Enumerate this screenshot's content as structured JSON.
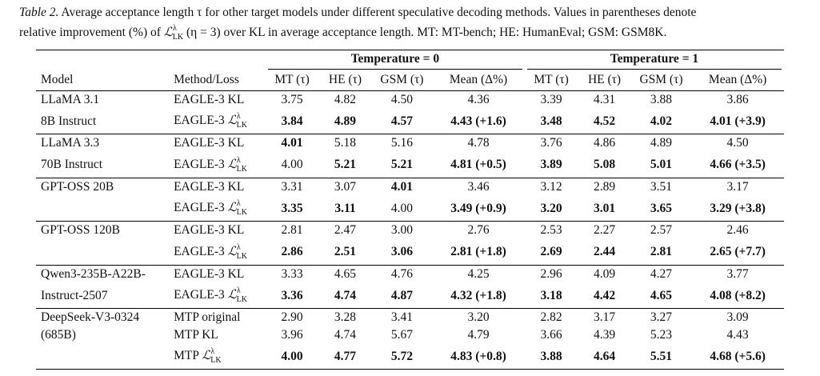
{
  "caption": {
    "label": "Table 2.",
    "text_line1": "Average acceptance length τ for other target models under different speculative decoding methods. Values in parentheses denote",
    "text_line2_pre": "relative improvement (%) of ",
    "loss_symbol": "ℒ",
    "loss_sup": "λ",
    "loss_sub": "LK",
    "text_line2_post": " (η = 3) over KL in average acceptance length. MT: MT-bench; HE: HumanEval; GSM: GSM8K."
  },
  "header": {
    "group1": "Temperature = 0",
    "group2": "Temperature = 1",
    "col_model": "Model",
    "col_method": "Method/Loss",
    "cols": [
      "MT (τ)",
      "HE (τ)",
      "GSM (τ)",
      "Mean (Δ%)",
      "MT (τ)",
      "HE (τ)",
      "GSM (τ)",
      "Mean (Δ%)"
    ]
  },
  "rows": [
    {
      "model": "LLaMA 3.1",
      "method": "EAGLE-3  KL",
      "lk": false,
      "values": [
        "3.75",
        "4.82",
        "4.50",
        "4.36",
        "3.39",
        "4.31",
        "3.88",
        "3.86"
      ],
      "bold": [
        false,
        false,
        false,
        false,
        false,
        false,
        false,
        false
      ],
      "sep": true
    },
    {
      "model": "8B Instruct",
      "method": "EAGLE-3 ",
      "lk": true,
      "values": [
        "3.84",
        "4.89",
        "4.57",
        "4.43 (+1.6)",
        "3.48",
        "4.52",
        "4.02",
        "4.01 (+3.9)"
      ],
      "bold": [
        true,
        true,
        true,
        true,
        true,
        true,
        true,
        true
      ],
      "sep": false
    },
    {
      "model": "LLaMA 3.3",
      "method": "EAGLE-3 KL",
      "lk": false,
      "values": [
        "4.01",
        "5.18",
        "5.16",
        "4.78",
        "3.76",
        "4.86",
        "4.89",
        "4.50"
      ],
      "bold": [
        true,
        false,
        false,
        false,
        false,
        false,
        false,
        false
      ],
      "sep": true
    },
    {
      "model": "70B Instruct",
      "method": "EAGLE-3 ",
      "lk": true,
      "values": [
        "4.00",
        "5.21",
        "5.21",
        "4.81 (+0.5)",
        "3.89",
        "5.08",
        "5.01",
        "4.66 (+3.5)"
      ],
      "bold": [
        false,
        true,
        true,
        true,
        true,
        true,
        true,
        true
      ],
      "sep": false
    },
    {
      "model": "GPT-OSS 20B",
      "method": "EAGLE-3 KL",
      "lk": false,
      "values": [
        "3.31",
        "3.07",
        "4.01",
        "3.46",
        "3.12",
        "2.89",
        "3.51",
        "3.17"
      ],
      "bold": [
        false,
        false,
        true,
        false,
        false,
        false,
        false,
        false
      ],
      "sep": true
    },
    {
      "model": "",
      "method": "EAGLE-3 ",
      "lk": true,
      "values": [
        "3.35",
        "3.11",
        "4.00",
        "3.49 (+0.9)",
        "3.20",
        "3.01",
        "3.65",
        "3.29 (+3.8)"
      ],
      "bold": [
        true,
        true,
        false,
        true,
        true,
        true,
        true,
        true
      ],
      "sep": false
    },
    {
      "model": "GPT-OSS 120B",
      "method": "EAGLE-3 KL",
      "lk": false,
      "values": [
        "2.81",
        "2.47",
        "3.00",
        "2.76",
        "2.53",
        "2.27",
        "2.57",
        "2.46"
      ],
      "bold": [
        false,
        false,
        false,
        false,
        false,
        false,
        false,
        false
      ],
      "sep": true
    },
    {
      "model": "",
      "method": "EAGLE-3 ",
      "lk": true,
      "values": [
        "2.86",
        "2.51",
        "3.06",
        "2.81 (+1.8)",
        "2.69",
        "2.44",
        "2.81",
        "2.65 (+7.7)"
      ],
      "bold": [
        true,
        true,
        true,
        true,
        true,
        true,
        true,
        true
      ],
      "sep": false
    },
    {
      "model": "Qwen3-235B-A22B-",
      "method": "EAGLE-3 KL",
      "lk": false,
      "values": [
        "3.33",
        "4.65",
        "4.76",
        "4.25",
        "2.96",
        "4.09",
        "4.27",
        "3.77"
      ],
      "bold": [
        false,
        false,
        false,
        false,
        false,
        false,
        false,
        false
      ],
      "sep": true
    },
    {
      "model": "Instruct-2507",
      "method": "EAGLE-3 ",
      "lk": true,
      "values": [
        "3.36",
        "4.74",
        "4.87",
        "4.32 (+1.8)",
        "3.18",
        "4.42",
        "4.65",
        "4.08 (+8.2)"
      ],
      "bold": [
        true,
        true,
        true,
        true,
        true,
        true,
        true,
        true
      ],
      "sep": false
    },
    {
      "model": "DeepSeek-V3-0324",
      "method": "MTP original",
      "lk": false,
      "values": [
        "2.90",
        "3.28",
        "3.41",
        "3.20",
        "2.82",
        "3.17",
        "3.27",
        "3.09"
      ],
      "bold": [
        false,
        false,
        false,
        false,
        false,
        false,
        false,
        false
      ],
      "sep": true
    },
    {
      "model": "(685B)",
      "method": "MTP KL",
      "lk": false,
      "values": [
        "3.96",
        "4.74",
        "5.67",
        "4.79",
        "3.66",
        "4.39",
        "5.23",
        "4.43"
      ],
      "bold": [
        false,
        false,
        false,
        false,
        false,
        false,
        false,
        false
      ],
      "sep": false
    },
    {
      "model": "",
      "method": "MTP ",
      "lk": true,
      "values": [
        "4.00",
        "4.77",
        "5.72",
        "4.83 (+0.8)",
        "3.88",
        "4.64",
        "5.51",
        "4.68 (+5.6)"
      ],
      "bold": [
        true,
        true,
        true,
        true,
        true,
        true,
        true,
        true
      ],
      "sep": false
    }
  ]
}
